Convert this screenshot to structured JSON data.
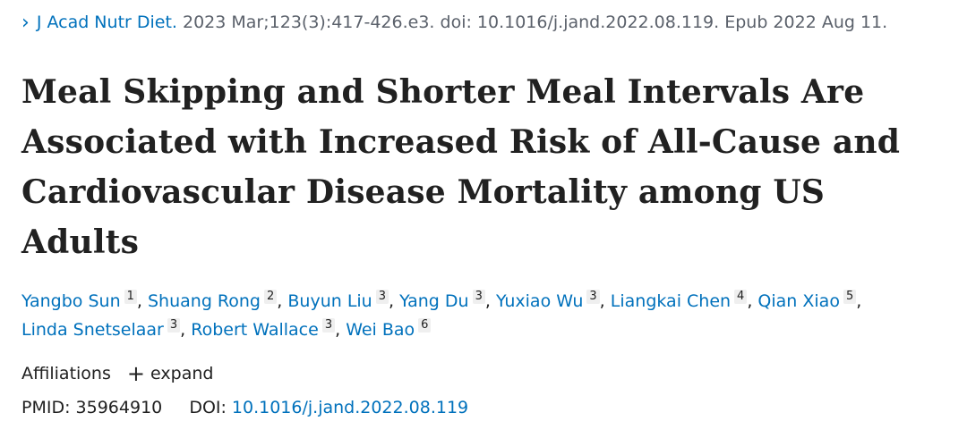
{
  "citation": {
    "chevron": "›",
    "journal": "J Acad Nutr Diet.",
    "details": "2023 Mar;123(3):417-426.e3. doi: 10.1016/j.jand.2022.08.119. Epub 2022 Aug 11."
  },
  "title_lines": [
    "Meal Skipping and Shorter Meal Intervals Are",
    "Associated with Increased Risk of All-Cause and",
    "Cardiovascular Disease Mortality among US Adults"
  ],
  "authors": [
    {
      "name": "Yangbo Sun",
      "aff": "1"
    },
    {
      "name": "Shuang Rong",
      "aff": "2"
    },
    {
      "name": "Buyun Liu",
      "aff": "3"
    },
    {
      "name": "Yang Du",
      "aff": "3"
    },
    {
      "name": "Yuxiao Wu",
      "aff": "3"
    },
    {
      "name": "Liangkai Chen",
      "aff": "4"
    },
    {
      "name": "Qian Xiao",
      "aff": "5"
    },
    {
      "name": "Linda Snetselaar",
      "aff": "3"
    },
    {
      "name": "Robert Wallace",
      "aff": "3"
    },
    {
      "name": "Wei Bao",
      "aff": "6"
    }
  ],
  "affiliations": {
    "label": "Affiliations",
    "plus": "+",
    "expand": "expand"
  },
  "ids": {
    "pmid_label": "PMID:",
    "pmid": "35964910",
    "doi_label": "DOI:",
    "doi": "10.1016/j.jand.2022.08.119"
  },
  "colors": {
    "link": "#0071bc",
    "text": "#212121"
  }
}
